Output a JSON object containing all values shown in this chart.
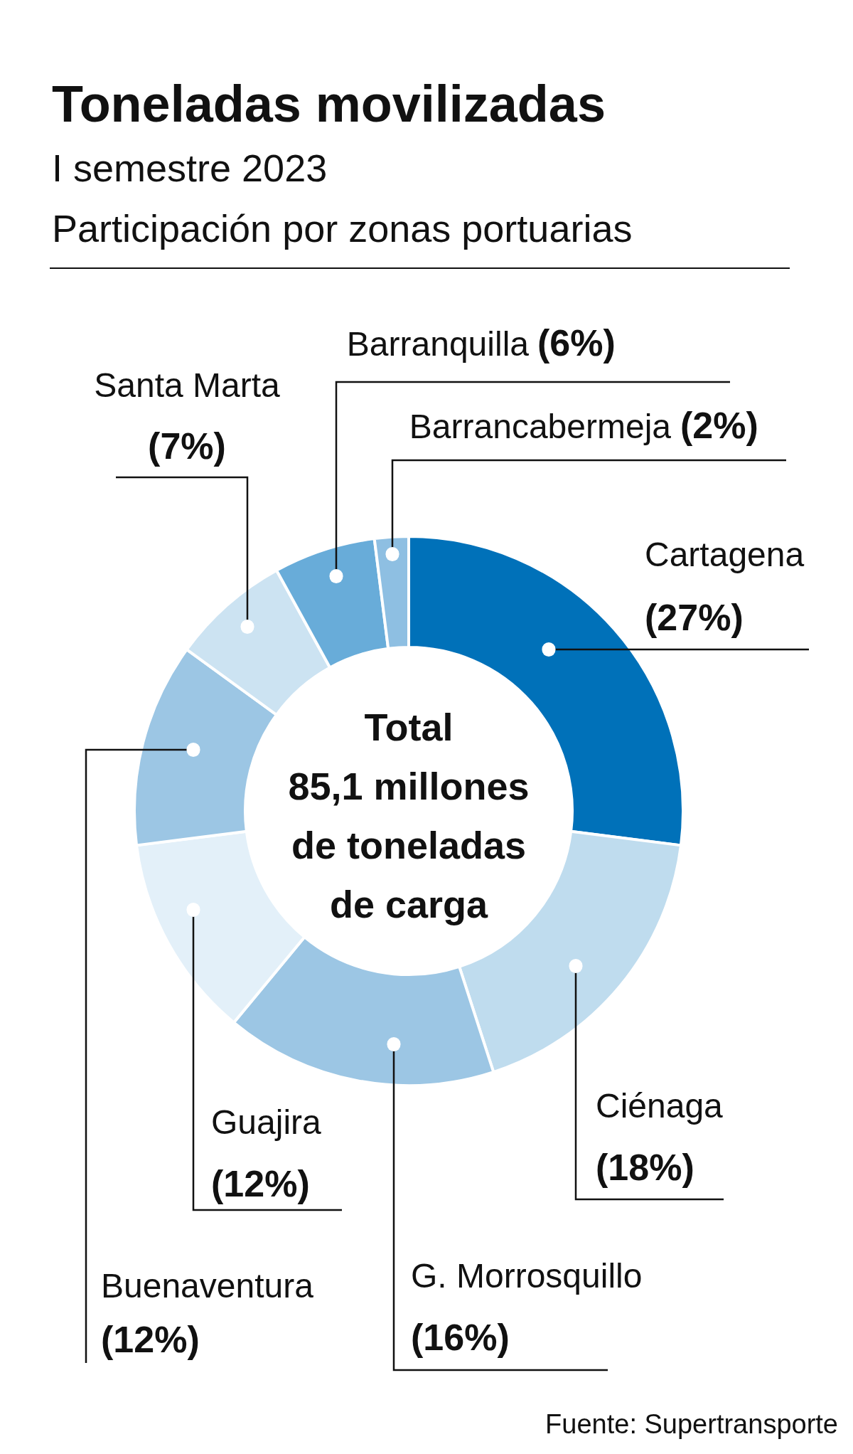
{
  "chart_data": {
    "type": "donut",
    "title": "Toneladas movilizadas",
    "subtitle": "I semestre 2023\nParticipación por zonas portuarias",
    "categories": [
      "Cartagena",
      "Ciénaga",
      "G. Morrosquillo",
      "Guajira",
      "Buenaventura",
      "Santa Marta",
      "Barranquilla",
      "Barrancabermeja"
    ],
    "values": [
      27,
      18,
      16,
      12,
      12,
      7,
      6,
      2
    ],
    "colors": [
      "#0071b9",
      "#bfdcee",
      "#9cc6e4",
      "#e3f0f9",
      "#9cc6e4",
      "#cce3f2",
      "#68acd9",
      "#8ebfe2"
    ],
    "value_labels": [
      "(27%)",
      "(18%)",
      "(16%)",
      "(12%)",
      "(12%)",
      "(7%)",
      "(6%)",
      "(2%)"
    ],
    "annotations": [
      "Total\n85,1 millones\nde toneladas\nde carga",
      "Fuente: Supertransporte"
    ]
  }
}
